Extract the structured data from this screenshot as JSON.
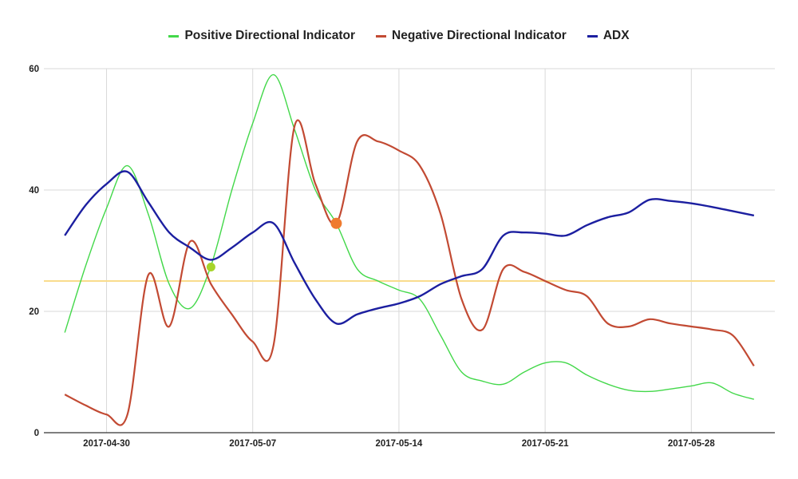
{
  "chart_data": {
    "type": "line",
    "title": "",
    "xlabel": "",
    "ylabel": "",
    "ylim": [
      0,
      60
    ],
    "xlim": [
      "2017-04-27",
      "2017-06-01"
    ],
    "x_tick_labels": [
      "2017-04-30",
      "2017-05-07",
      "2017-05-14",
      "2017-05-21",
      "2017-05-28"
    ],
    "y_tick_labels": [
      "0",
      "20",
      "40",
      "60"
    ],
    "grid": true,
    "legend_position": "top",
    "threshold": {
      "value": 25,
      "color": "#f9dc8c"
    },
    "series": [
      {
        "name": "Positive Directional Indicator",
        "color": "#43d84a",
        "points": [
          [
            "2017-04-28",
            16.5
          ],
          [
            "2017-04-29",
            27.5
          ],
          [
            "2017-04-30",
            37
          ],
          [
            "2017-05-01",
            44
          ],
          [
            "2017-05-02",
            36
          ],
          [
            "2017-05-03",
            24.5
          ],
          [
            "2017-05-04",
            20.5
          ],
          [
            "2017-05-05",
            27.5
          ],
          [
            "2017-05-06",
            40
          ],
          [
            "2017-05-07",
            51
          ],
          [
            "2017-05-08",
            59
          ],
          [
            "2017-05-09",
            50
          ],
          [
            "2017-05-10",
            40
          ],
          [
            "2017-05-11",
            34.5
          ],
          [
            "2017-05-12",
            27
          ],
          [
            "2017-05-13",
            25
          ],
          [
            "2017-05-14",
            23.5
          ],
          [
            "2017-05-15",
            22
          ],
          [
            "2017-05-16",
            16
          ],
          [
            "2017-05-17",
            10
          ],
          [
            "2017-05-18",
            8.5
          ],
          [
            "2017-05-19",
            8
          ],
          [
            "2017-05-20",
            10
          ],
          [
            "2017-05-21",
            11.5
          ],
          [
            "2017-05-22",
            11.5
          ],
          [
            "2017-05-23",
            9.5
          ],
          [
            "2017-05-24",
            8
          ],
          [
            "2017-05-25",
            7
          ],
          [
            "2017-05-26",
            6.8
          ],
          [
            "2017-05-27",
            7.2
          ],
          [
            "2017-05-28",
            7.7
          ],
          [
            "2017-05-29",
            8.2
          ],
          [
            "2017-05-30",
            6.5
          ],
          [
            "2017-05-31",
            5.5
          ]
        ]
      },
      {
        "name": "Negative Directional Indicator",
        "color": "#c24a33",
        "points": [
          [
            "2017-04-28",
            6.3
          ],
          [
            "2017-04-29",
            4.5
          ],
          [
            "2017-04-30",
            3
          ],
          [
            "2017-05-01",
            3
          ],
          [
            "2017-05-02",
            26
          ],
          [
            "2017-05-03",
            17.5
          ],
          [
            "2017-05-04",
            31.5
          ],
          [
            "2017-05-05",
            24.5
          ],
          [
            "2017-05-06",
            19.5
          ],
          [
            "2017-05-07",
            15
          ],
          [
            "2017-05-08",
            14.5
          ],
          [
            "2017-05-09",
            50.5
          ],
          [
            "2017-05-10",
            41
          ],
          [
            "2017-05-11",
            34.5
          ],
          [
            "2017-05-12",
            48
          ],
          [
            "2017-05-13",
            48
          ],
          [
            "2017-05-14",
            46.5
          ],
          [
            "2017-05-15",
            44
          ],
          [
            "2017-05-16",
            36
          ],
          [
            "2017-05-17",
            22
          ],
          [
            "2017-05-18",
            17
          ],
          [
            "2017-05-19",
            27
          ],
          [
            "2017-05-20",
            26.5
          ],
          [
            "2017-05-21",
            25
          ],
          [
            "2017-05-22",
            23.5
          ],
          [
            "2017-05-23",
            22.5
          ],
          [
            "2017-05-24",
            18
          ],
          [
            "2017-05-25",
            17.5
          ],
          [
            "2017-05-26",
            18.7
          ],
          [
            "2017-05-27",
            18
          ],
          [
            "2017-05-28",
            17.5
          ],
          [
            "2017-05-29",
            17
          ],
          [
            "2017-05-30",
            16
          ],
          [
            "2017-05-31",
            11
          ]
        ]
      },
      {
        "name": "ADX",
        "color": "#1c1fa0",
        "points": [
          [
            "2017-04-28",
            32.5
          ],
          [
            "2017-04-29",
            37.5
          ],
          [
            "2017-04-30",
            41
          ],
          [
            "2017-05-01",
            43
          ],
          [
            "2017-05-02",
            38
          ],
          [
            "2017-05-03",
            33
          ],
          [
            "2017-05-04",
            30.5
          ],
          [
            "2017-05-05",
            28.5
          ],
          [
            "2017-05-06",
            30.5
          ],
          [
            "2017-05-07",
            33
          ],
          [
            "2017-05-08",
            34.5
          ],
          [
            "2017-05-09",
            28
          ],
          [
            "2017-05-10",
            22
          ],
          [
            "2017-05-11",
            18
          ],
          [
            "2017-05-12",
            19.5
          ],
          [
            "2017-05-13",
            20.5
          ],
          [
            "2017-05-14",
            21.3
          ],
          [
            "2017-05-15",
            22.5
          ],
          [
            "2017-05-16",
            24.5
          ],
          [
            "2017-05-17",
            25.8
          ],
          [
            "2017-05-18",
            27
          ],
          [
            "2017-05-19",
            32.5
          ],
          [
            "2017-05-20",
            33
          ],
          [
            "2017-05-21",
            32.8
          ],
          [
            "2017-05-22",
            32.5
          ],
          [
            "2017-05-23",
            34.2
          ],
          [
            "2017-05-24",
            35.5
          ],
          [
            "2017-05-25",
            36.3
          ],
          [
            "2017-05-26",
            38.4
          ],
          [
            "2017-05-27",
            38.2
          ],
          [
            "2017-05-28",
            37.8
          ],
          [
            "2017-05-29",
            37.2
          ],
          [
            "2017-05-30",
            36.5
          ],
          [
            "2017-05-31",
            35.8
          ]
        ]
      }
    ],
    "markers": [
      {
        "date": "2017-05-05",
        "value": 27.3,
        "color": "#a6d42a"
      },
      {
        "date": "2017-05-11",
        "value": 34.5,
        "color": "#ef7b2f"
      }
    ]
  }
}
